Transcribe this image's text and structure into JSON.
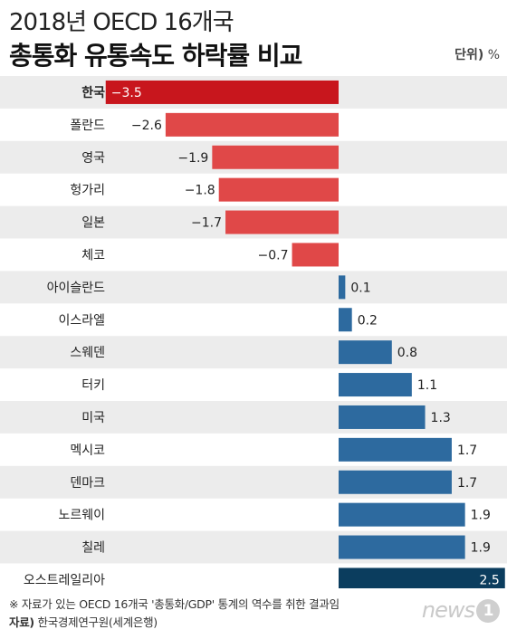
{
  "header": {
    "title_line1": "2018년 OECD 16개국",
    "title_line2": "총통화 유통속도 하락률 비교",
    "unit_label": "단위)",
    "unit_value": "%"
  },
  "footer": {
    "footnote": "※ 자료가 있는 OECD 16개국 '총통화/GDP' 통계의 역수를 취한 결과임",
    "source_key": "자료)",
    "source_value": "한국경제연구원(세계은행)",
    "logo_text": "news",
    "logo_num": "1"
  },
  "colors": {
    "highlight_negative": "#c8161d",
    "negative": "#e04848",
    "positive": "#2d6a9f",
    "highlight_positive": "#0b3d5e",
    "row_alt": "#ececec"
  },
  "chart_data": {
    "type": "bar",
    "orientation": "horizontal",
    "categories": [
      "한국",
      "폴란드",
      "영국",
      "헝가리",
      "일본",
      "체코",
      "아이슬란드",
      "이스라엘",
      "스웨덴",
      "터키",
      "미국",
      "멕시코",
      "덴마크",
      "노르웨이",
      "칠레",
      "오스트레일리아"
    ],
    "values": [
      -3.5,
      -2.6,
      -1.9,
      -1.8,
      -1.7,
      -0.7,
      0.1,
      0.2,
      0.8,
      1.1,
      1.3,
      1.7,
      1.7,
      1.9,
      1.9,
      2.5
    ],
    "value_labels": [
      "−3.5",
      "−2.6",
      "−1.9",
      "−1.8",
      "−1.7",
      "−0.7",
      "0.1",
      "0.2",
      "0.8",
      "1.1",
      "1.3",
      "1.7",
      "1.7",
      "1.9",
      "1.9",
      "2.5"
    ],
    "highlight": [
      "한국",
      "오스트레일리아"
    ],
    "xlim": [
      -3.5,
      2.5
    ],
    "title": "2018년 OECD 16개국 총통화 유통속도 하락률 비교",
    "xlabel": "",
    "ylabel": ""
  }
}
